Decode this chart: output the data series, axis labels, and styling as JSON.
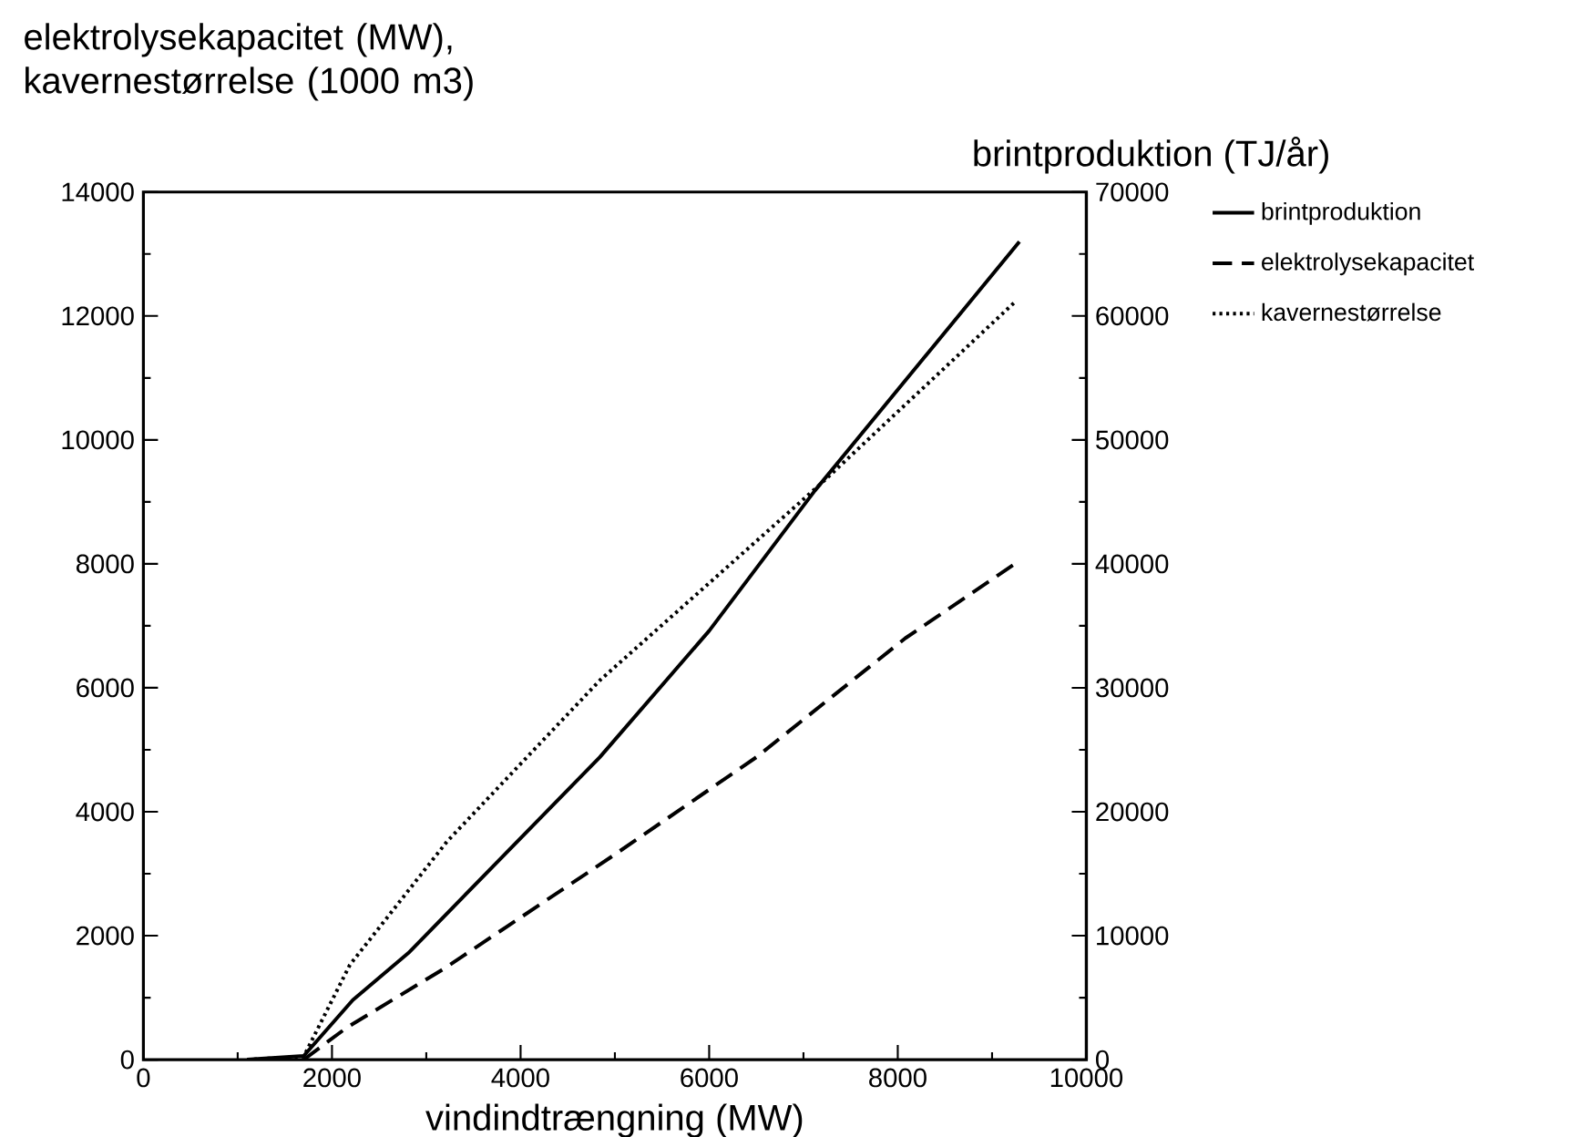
{
  "chart_data": {
    "type": "line",
    "xlabel": "vindindtrængning (MW)",
    "ylabel": "elektrolysekapacitet (MW), kavernestørrelse (1000 m3)",
    "y2label": "brintproduktion (TJ/år)",
    "xlim": [
      0,
      10000
    ],
    "xticks": [
      0,
      2000,
      4000,
      6000,
      8000,
      10000
    ],
    "ylim": [
      0,
      14000
    ],
    "yticks": [
      0,
      2000,
      4000,
      6000,
      8000,
      10000,
      12000,
      14000
    ],
    "y2lim": [
      0,
      70000
    ],
    "y2ticks": [
      0,
      10000,
      20000,
      30000,
      40000,
      50000,
      60000,
      70000
    ],
    "legend": "top right",
    "marker": "none",
    "grid": false,
    "series": [
      {
        "name": "brintproduktion",
        "color": "#000000",
        "axis": "y2",
        "line_style": "solid",
        "x": [
          1100,
          1700,
          2220,
          2810,
          4840,
          6000,
          7120,
          9290
        ],
        "values": [
          0,
          300,
          4800,
          8600,
          24400,
          34600,
          45900,
          66000
        ]
      },
      {
        "name": "elektrolysekapacitet",
        "color": "#000000",
        "axis": "y",
        "line_style": "dashed",
        "x": [
          1700,
          2150,
          3190,
          4980,
          6500,
          8080,
          9290
        ],
        "values": [
          0,
          510,
          1470,
          3290,
          4880,
          6800,
          8050
        ]
      },
      {
        "name": "kavernestørrelse",
        "color": "#000000",
        "axis": "y",
        "line_style": "dotted",
        "x": [
          1100,
          1700,
          2190,
          3220,
          4840,
          7190,
          9260
        ],
        "values": [
          0,
          50,
          1530,
          3520,
          6120,
          9300,
          12250
        ]
      }
    ]
  }
}
